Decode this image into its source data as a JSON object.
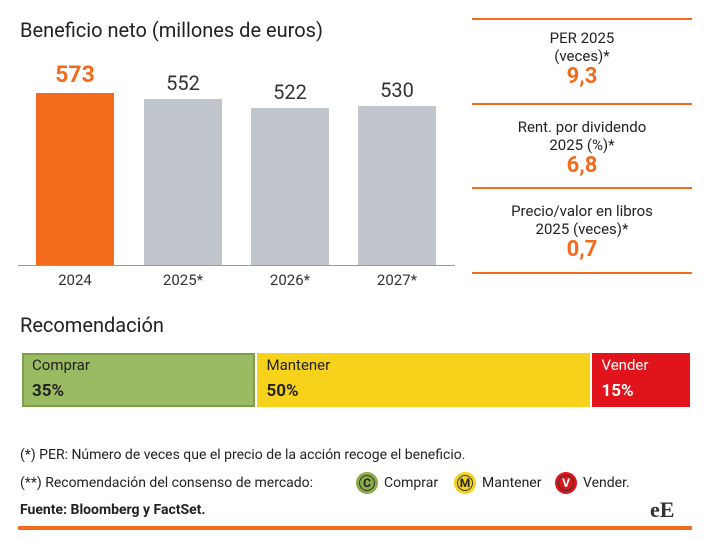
{
  "chart_data": [
    {
      "type": "bar",
      "title": "Beneficio neto (millones de euros)",
      "categories": [
        "2024",
        "2025*",
        "2026*",
        "2027*"
      ],
      "values": [
        573,
        552,
        522,
        530
      ],
      "colors": [
        "#f26b1d",
        "#c1c6cd",
        "#c1c6cd",
        "#c1c6cd"
      ],
      "label_colors": [
        "#f26b1d",
        "#333333",
        "#333333",
        "#333333"
      ]
    },
    {
      "type": "stacked_hbar",
      "title": "Recomendación",
      "series": [
        {
          "name": "Comprar",
          "color": "#9bbb63",
          "text_color": "#222222",
          "values": [
            35
          ],
          "value_labels": [
            "35%"
          ]
        },
        {
          "name": "Mantener",
          "color": "#f6d31a",
          "text_color": "#222222",
          "values": [
            50
          ],
          "value_labels": [
            "50%"
          ]
        },
        {
          "name": "Vender",
          "color": "#e2141b",
          "text_color": "#ffffff",
          "values": [
            15
          ],
          "value_labels": [
            "15%"
          ]
        }
      ]
    }
  ],
  "stats": [
    {
      "label": [
        "PER 2025",
        "(veces)*"
      ],
      "value": "9,3"
    },
    {
      "label": [
        "Rent. por dividendo",
        "2025 (%)*"
      ],
      "value": "6,8"
    },
    {
      "label": [
        "Precio/valor en libros",
        "2025 (veces)*"
      ],
      "value": "0,7"
    }
  ],
  "notes": {
    "per": "(*) PER: Número de veces que el precio de la acción recoge el beneficio.",
    "consensus": "(**) Recomendación del consenso de mercado:",
    "legend": [
      {
        "icon": "C",
        "label": "Comprar",
        "color": "#8aab45"
      },
      {
        "icon": "M",
        "label": "Mantener",
        "color": "#f2d21b"
      },
      {
        "icon": "V",
        "label": "Vender.",
        "color": "#d8161c"
      }
    ]
  },
  "source": "Fuente: Bloomberg y FactSet.",
  "logo": "eE"
}
